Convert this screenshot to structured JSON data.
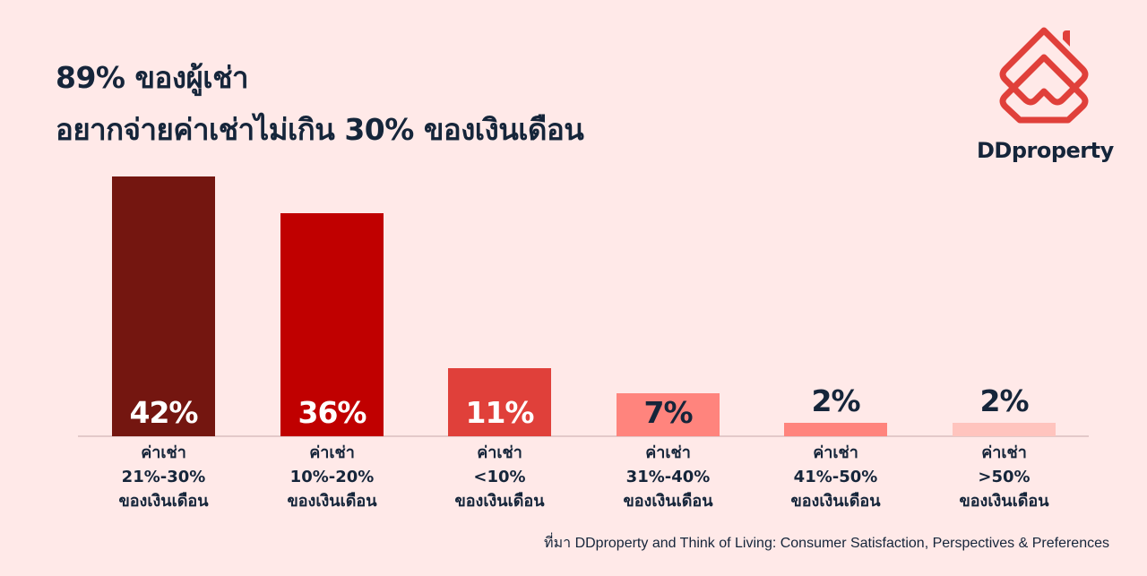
{
  "title": {
    "line1": "89% ของผู้เช่า",
    "line2": "อยากจ่ายค่าเช่าไม่เกิน 30% ของเงินเดือน"
  },
  "logo": {
    "icon": "ddproperty-house-icon",
    "brand": "DDproperty",
    "color": "#E0403A"
  },
  "source": "ที่มา DDproperty and Think of Living: Consumer Satisfaction, Perspectives & Preferences",
  "colors": {
    "background": "#FFE9E8",
    "text": "#15253A",
    "axis": "#E3C9C9"
  },
  "chart_data": {
    "type": "bar",
    "title": "89% ของผู้เช่า อยากจ่ายค่าเช่าไม่เกิน 30% ของเงินเดือน",
    "xlabel": "",
    "ylabel": "",
    "ylim": [
      0,
      42
    ],
    "grid": false,
    "legend": "none",
    "categories": [
      "ค่าเช่า 21%-30% ของเงินเดือน",
      "ค่าเช่า 10%-20% ของเงินเดือน",
      "ค่าเช่า <10% ของเงินเดือน",
      "ค่าเช่า 31%-40% ของเงินเดือน",
      "ค่าเช่า 41%-50% ของเงินเดือน",
      "ค่าเช่า >50% ของเงินเดือน"
    ],
    "values": [
      42,
      36,
      11,
      7,
      2,
      2
    ],
    "value_labels": [
      "42%",
      "36%",
      "11%",
      "7%",
      "2%",
      "2%"
    ],
    "bars": [
      {
        "label_lines": [
          "ค่าเช่า",
          "21%-30%",
          "ของเงินเดือน"
        ],
        "value": 42,
        "value_label": "42%",
        "color": "#741610",
        "label_color": "#FFFFFF",
        "label_inside": true
      },
      {
        "label_lines": [
          "ค่าเช่า",
          "10%-20%",
          "ของเงินเดือน"
        ],
        "value": 36,
        "value_label": "36%",
        "color": "#C00000",
        "label_color": "#FFFFFF",
        "label_inside": true
      },
      {
        "label_lines": [
          "ค่าเช่า",
          "<10%",
          "ของเงินเดือน"
        ],
        "value": 11,
        "value_label": "11%",
        "color": "#E0403A",
        "label_color": "#FFFFFF",
        "label_inside": true
      },
      {
        "label_lines": [
          "ค่าเช่า",
          "31%-40%",
          "ของเงินเดือน"
        ],
        "value": 7,
        "value_label": "7%",
        "color": "#FF847D",
        "label_color": "#15253A",
        "label_inside": true
      },
      {
        "label_lines": [
          "ค่าเช่า",
          "41%-50%",
          "ของเงินเดือน"
        ],
        "value": 2,
        "value_label": "2%",
        "color": "#FF847D",
        "label_color": "#15253A",
        "label_inside": false
      },
      {
        "label_lines": [
          "ค่าเช่า",
          ">50%",
          "ของเงินเดือน"
        ],
        "value": 2,
        "value_label": "2%",
        "color": "#FFC4BE",
        "label_color": "#15253A",
        "label_inside": false
      }
    ]
  }
}
